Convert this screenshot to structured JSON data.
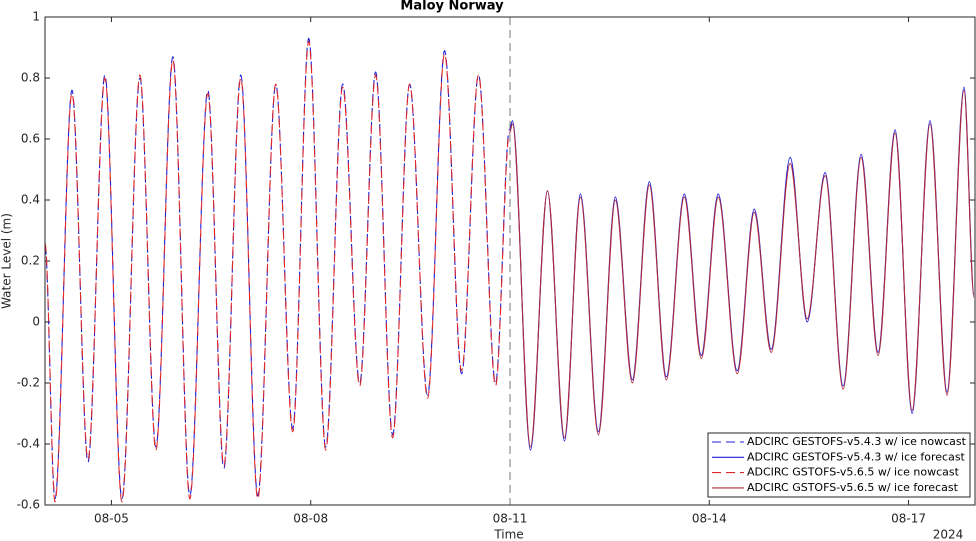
{
  "chart_data": {
    "type": "line",
    "title": "Maloy Norway",
    "x_label": "Time",
    "y_label": "Water Level (m)",
    "x_annotation": "2024",
    "xlim": [
      4,
      18
    ],
    "ylim": [
      -0.6,
      1
    ],
    "xticks": [
      {
        "value": 5,
        "label": "08-05"
      },
      {
        "value": 8,
        "label": "08-08"
      },
      {
        "value": 11,
        "label": "08-11"
      },
      {
        "value": 14,
        "label": "08-14"
      },
      {
        "value": 17,
        "label": "08-17"
      }
    ],
    "yticks": [
      -0.6,
      -0.4,
      -0.2,
      0,
      0.2,
      0.4,
      0.6,
      0.8,
      1
    ],
    "vline": 11,
    "legend": "lower right",
    "x": [
      4.0,
      4.15,
      4.406,
      4.647,
      4.902,
      5.158,
      5.429,
      5.669,
      5.925,
      6.18,
      6.451,
      6.692,
      6.947,
      7.203,
      7.474,
      7.729,
      7.97,
      8.226,
      8.481,
      8.737,
      8.977,
      9.233,
      9.489,
      9.759,
      10.015,
      10.271,
      10.526,
      10.782,
      10.992,
      11.038,
      11.308,
      11.564,
      11.82,
      12.06,
      12.331,
      12.586,
      12.842,
      13.098,
      13.353,
      13.624,
      13.88,
      14.135,
      14.421,
      14.677,
      14.932,
      15.218,
      15.474,
      15.744,
      16.015,
      16.286,
      16.541,
      16.797,
      17.053,
      17.323,
      17.579,
      17.835,
      17.985
    ],
    "series": [
      {
        "name": "ADCIRC GESTOFS-v5.4.3 w/ ice nowcast",
        "color": "#1f1fd6",
        "dashed": true,
        "values": [
          0.25,
          -0.58,
          0.76,
          -0.46,
          0.81,
          -0.58,
          0.8,
          -0.41,
          0.87,
          -0.57,
          0.76,
          -0.48,
          0.81,
          -0.57,
          0.78,
          -0.35,
          0.93,
          -0.41,
          0.78,
          -0.2,
          0.82,
          -0.37,
          0.78,
          -0.24,
          0.89,
          -0.17,
          0.81,
          -0.2,
          0.63,
          null,
          null,
          null,
          null,
          null,
          null,
          null,
          null,
          null,
          null,
          null,
          null,
          null,
          null,
          null,
          null,
          null,
          null,
          null,
          null,
          null,
          null,
          null,
          null,
          null,
          null,
          null,
          null
        ]
      },
      {
        "name": "ADCIRC GESTOFS-v5.4.3 w/ ice forecast",
        "color": "#1f1fd6",
        "dashed": false,
        "values": [
          null,
          null,
          null,
          null,
          null,
          null,
          null,
          null,
          null,
          null,
          null,
          null,
          null,
          null,
          null,
          null,
          null,
          null,
          null,
          null,
          null,
          null,
          null,
          null,
          null,
          null,
          null,
          null,
          0.63,
          0.66,
          -0.42,
          0.43,
          -0.39,
          0.42,
          -0.36,
          0.41,
          -0.19,
          0.46,
          -0.18,
          0.42,
          -0.11,
          0.42,
          -0.16,
          0.37,
          -0.09,
          0.54,
          0.0,
          0.49,
          -0.21,
          0.55,
          -0.1,
          0.63,
          -0.3,
          0.66,
          -0.23,
          0.77,
          0.09
        ]
      },
      {
        "name": "ADCIRC GSTOFS-v5.6.5 w/ ice nowcast",
        "color": "#e0282a",
        "dashed": true,
        "values": [
          0.26,
          -0.59,
          0.75,
          -0.45,
          0.8,
          -0.59,
          0.81,
          -0.42,
          0.86,
          -0.58,
          0.75,
          -0.47,
          0.8,
          -0.58,
          0.78,
          -0.36,
          0.92,
          -0.42,
          0.77,
          -0.21,
          0.81,
          -0.38,
          0.78,
          -0.25,
          0.88,
          -0.16,
          0.81,
          -0.21,
          0.62,
          null,
          null,
          null,
          null,
          null,
          null,
          null,
          null,
          null,
          null,
          null,
          null,
          null,
          null,
          null,
          null,
          null,
          null,
          null,
          null,
          null,
          null,
          null,
          null,
          null,
          null,
          null,
          null
        ]
      },
      {
        "name": "ADCIRC GSTOFS-v5.6.5 w/ ice forecast",
        "color": "#b02a3a",
        "dashed": false,
        "values": [
          null,
          null,
          null,
          null,
          null,
          null,
          null,
          null,
          null,
          null,
          null,
          null,
          null,
          null,
          null,
          null,
          null,
          null,
          null,
          null,
          null,
          null,
          null,
          null,
          null,
          null,
          null,
          null,
          0.62,
          0.65,
          -0.41,
          0.43,
          -0.38,
          0.41,
          -0.37,
          0.4,
          -0.2,
          0.45,
          -0.19,
          0.41,
          -0.12,
          0.41,
          -0.17,
          0.36,
          -0.1,
          0.52,
          0.01,
          0.48,
          -0.22,
          0.54,
          -0.11,
          0.62,
          -0.29,
          0.65,
          -0.24,
          0.76,
          0.08
        ]
      }
    ]
  }
}
